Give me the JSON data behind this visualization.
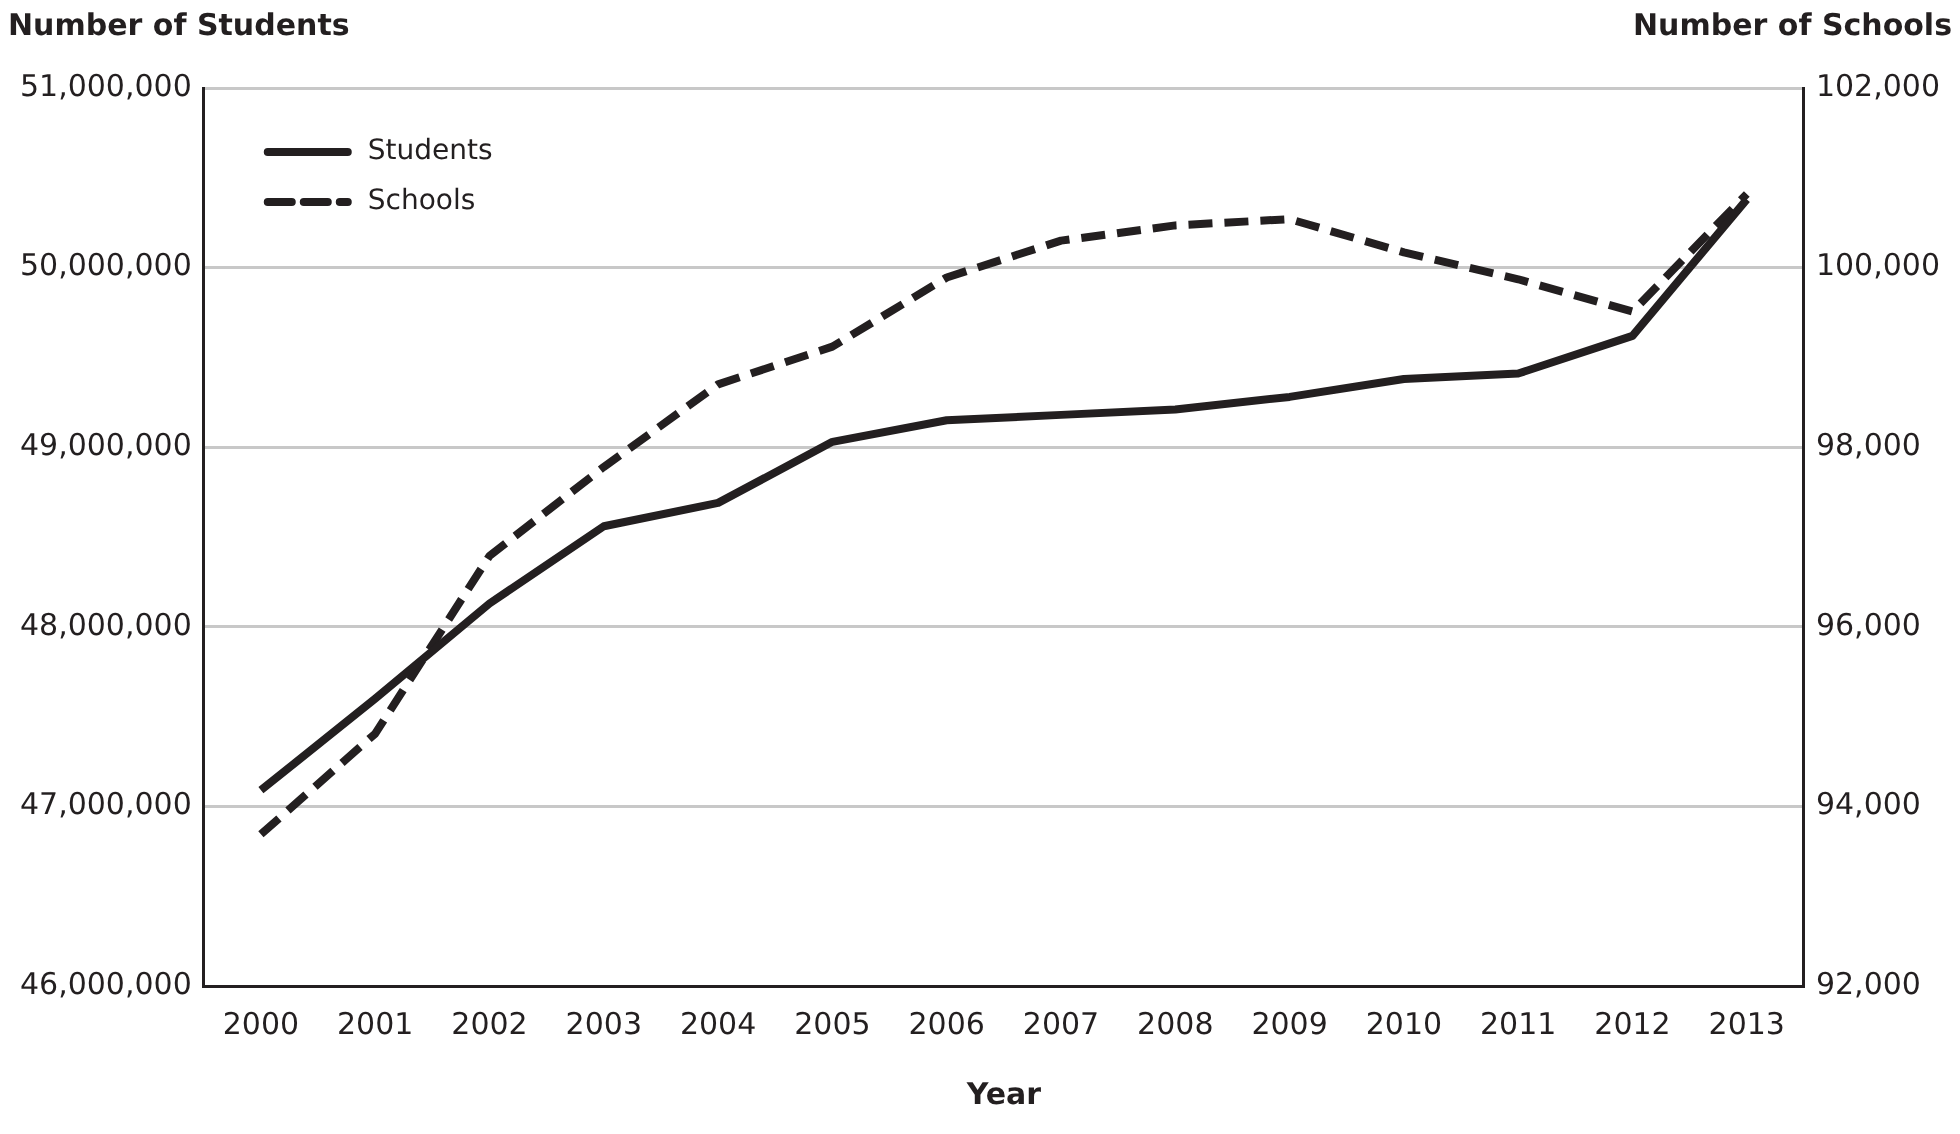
{
  "chart_data": {
    "type": "line",
    "xlabel": "Year",
    "ylabel": "Number of Students",
    "y2label": "Number of Schools",
    "categories": [
      "2000",
      "2001",
      "2002",
      "2003",
      "2004",
      "2005",
      "2006",
      "2007",
      "2008",
      "2009",
      "2010",
      "2011",
      "2012",
      "2013"
    ],
    "series": [
      {
        "name": "Students",
        "color": "#231f20",
        "line_style": "solid",
        "axis": "y",
        "values": [
          47090000,
          47600000,
          48130000,
          48560000,
          48690000,
          49030000,
          49150000,
          49180000,
          49210000,
          49280000,
          49380000,
          49410000,
          49620000,
          50380000
        ]
      },
      {
        "name": "Schools",
        "color": "#231f20",
        "line_style": "dashed",
        "axis": "y2",
        "values": [
          93690,
          94810,
          96790,
          97780,
          98700,
          99120,
          99890,
          100300,
          100470,
          100540,
          100170,
          99870,
          99510,
          100820
        ]
      }
    ],
    "ylim": [
      46000000,
      51000000
    ],
    "yticks": [
      {
        "value": 46000000,
        "label": "46,000,000"
      },
      {
        "value": 47000000,
        "label": "47,000,000"
      },
      {
        "value": 48000000,
        "label": "48,000,000"
      },
      {
        "value": 49000000,
        "label": "49,000,000"
      },
      {
        "value": 50000000,
        "label": "50,000,000"
      },
      {
        "value": 51000000,
        "label": "51,000,000"
      }
    ],
    "y2lim": [
      92000,
      102000
    ],
    "y2ticks": [
      {
        "value": 92000,
        "label": "92,000"
      },
      {
        "value": 94000,
        "label": "94,000"
      },
      {
        "value": 96000,
        "label": "96,000"
      },
      {
        "value": 98000,
        "label": "98,000"
      },
      {
        "value": 100000,
        "label": "100,000"
      },
      {
        "value": 102000,
        "label": "102,000"
      }
    ],
    "grid": "y",
    "legend": "top left",
    "marker": "none"
  }
}
